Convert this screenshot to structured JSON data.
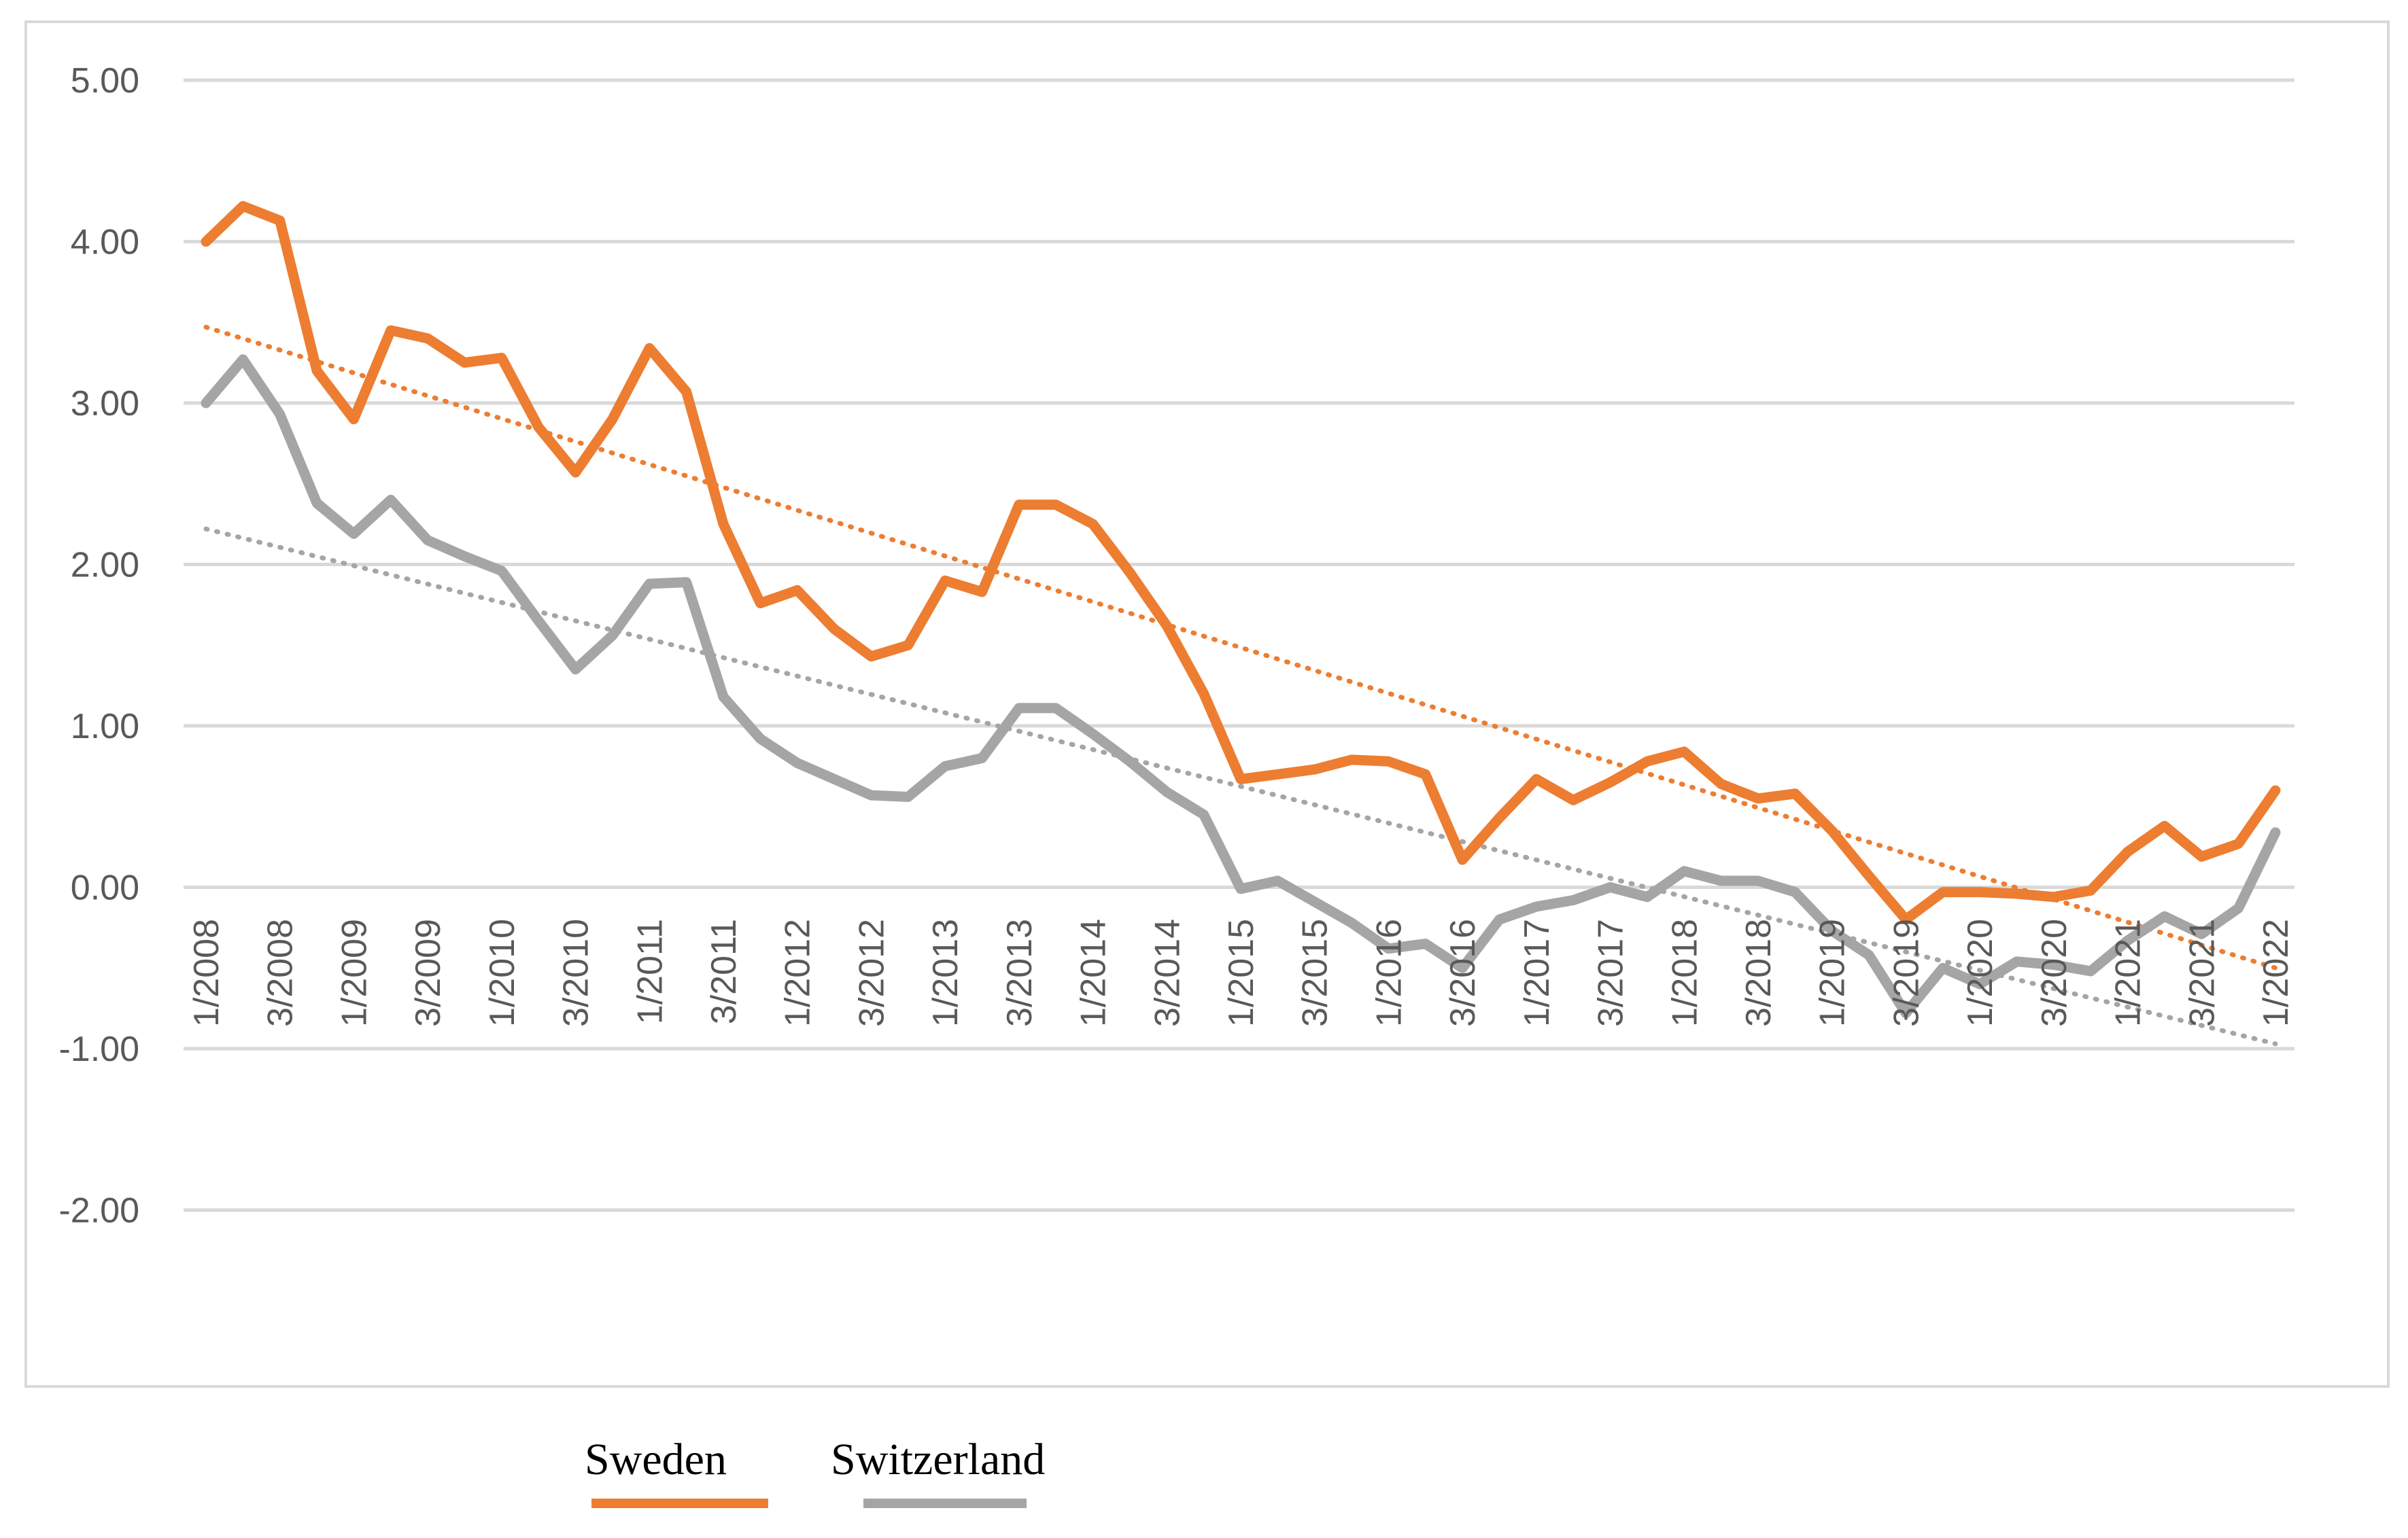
{
  "chart_data": {
    "type": "line",
    "title": "",
    "xlabel": "",
    "ylabel": "",
    "ylim": [
      -2,
      5
    ],
    "yticks": [
      {
        "value": 5,
        "label": "5.00"
      },
      {
        "value": 4,
        "label": "4.00"
      },
      {
        "value": 3,
        "label": "3.00"
      },
      {
        "value": 2,
        "label": "2.00"
      },
      {
        "value": 1,
        "label": "1.00"
      },
      {
        "value": 0,
        "label": "0.00"
      },
      {
        "value": -1,
        "label": "-1.00"
      },
      {
        "value": -2,
        "label": "-2.00"
      }
    ],
    "x_tick_labels": [
      "1/2008",
      "3/2008",
      "1/2009",
      "3/2009",
      "1/2010",
      "3/2010",
      "1/2011",
      "3/2011",
      "1/2012",
      "3/2012",
      "1/2013",
      "3/2013",
      "1/2014",
      "3/2014",
      "1/2015",
      "3/2015",
      "1/2016",
      "3/2016",
      "1/2017",
      "3/2017",
      "1/2018",
      "3/2018",
      "1/2019",
      "3/2019",
      "1/2020",
      "3/2020",
      "1/2021",
      "3/2021",
      "1/2022"
    ],
    "series": [
      {
        "name": "Sweden",
        "color": "#ed7d31",
        "values": [
          4.0,
          4.22,
          4.13,
          3.2,
          2.9,
          3.45,
          3.4,
          3.25,
          3.28,
          2.85,
          2.57,
          2.9,
          3.34,
          3.07,
          2.25,
          1.76,
          1.84,
          1.6,
          1.43,
          1.5,
          1.9,
          1.83,
          2.37,
          2.37,
          2.25,
          1.95,
          1.62,
          1.2,
          0.67,
          0.7,
          0.73,
          0.79,
          0.78,
          0.7,
          0.17,
          0.43,
          0.67,
          0.54,
          0.65,
          0.78,
          0.84,
          0.64,
          0.55,
          0.58,
          0.35,
          0.07,
          -0.2,
          -0.03,
          -0.03,
          -0.04,
          -0.06,
          -0.02,
          0.22,
          0.38,
          0.19,
          0.27,
          0.6
        ],
        "trendline": [
          3.47,
          -0.5
        ]
      },
      {
        "name": "Switzerland",
        "color": "#a5a5a5",
        "values": [
          3.0,
          3.27,
          2.93,
          2.38,
          2.19,
          2.4,
          2.15,
          2.05,
          1.96,
          1.65,
          1.35,
          1.56,
          1.88,
          1.89,
          1.18,
          0.92,
          0.77,
          0.67,
          0.57,
          0.56,
          0.75,
          0.8,
          1.11,
          1.11,
          0.95,
          0.78,
          0.59,
          0.45,
          -0.01,
          0.04,
          -0.09,
          -0.22,
          -0.38,
          -0.35,
          -0.5,
          -0.2,
          -0.12,
          -0.08,
          0.0,
          -0.06,
          0.1,
          0.04,
          0.04,
          -0.03,
          -0.27,
          -0.42,
          -0.78,
          -0.5,
          -0.6,
          -0.46,
          -0.48,
          -0.52,
          -0.33,
          -0.18,
          -0.29,
          -0.13,
          0.34
        ],
        "trendline": [
          2.22,
          -0.97
        ]
      }
    ],
    "legend": {
      "position": "bottom",
      "items": [
        {
          "label": "Sweden",
          "color": "#ed7d31"
        },
        {
          "label": "Switzerland",
          "color": "#a5a5a5"
        }
      ]
    }
  }
}
